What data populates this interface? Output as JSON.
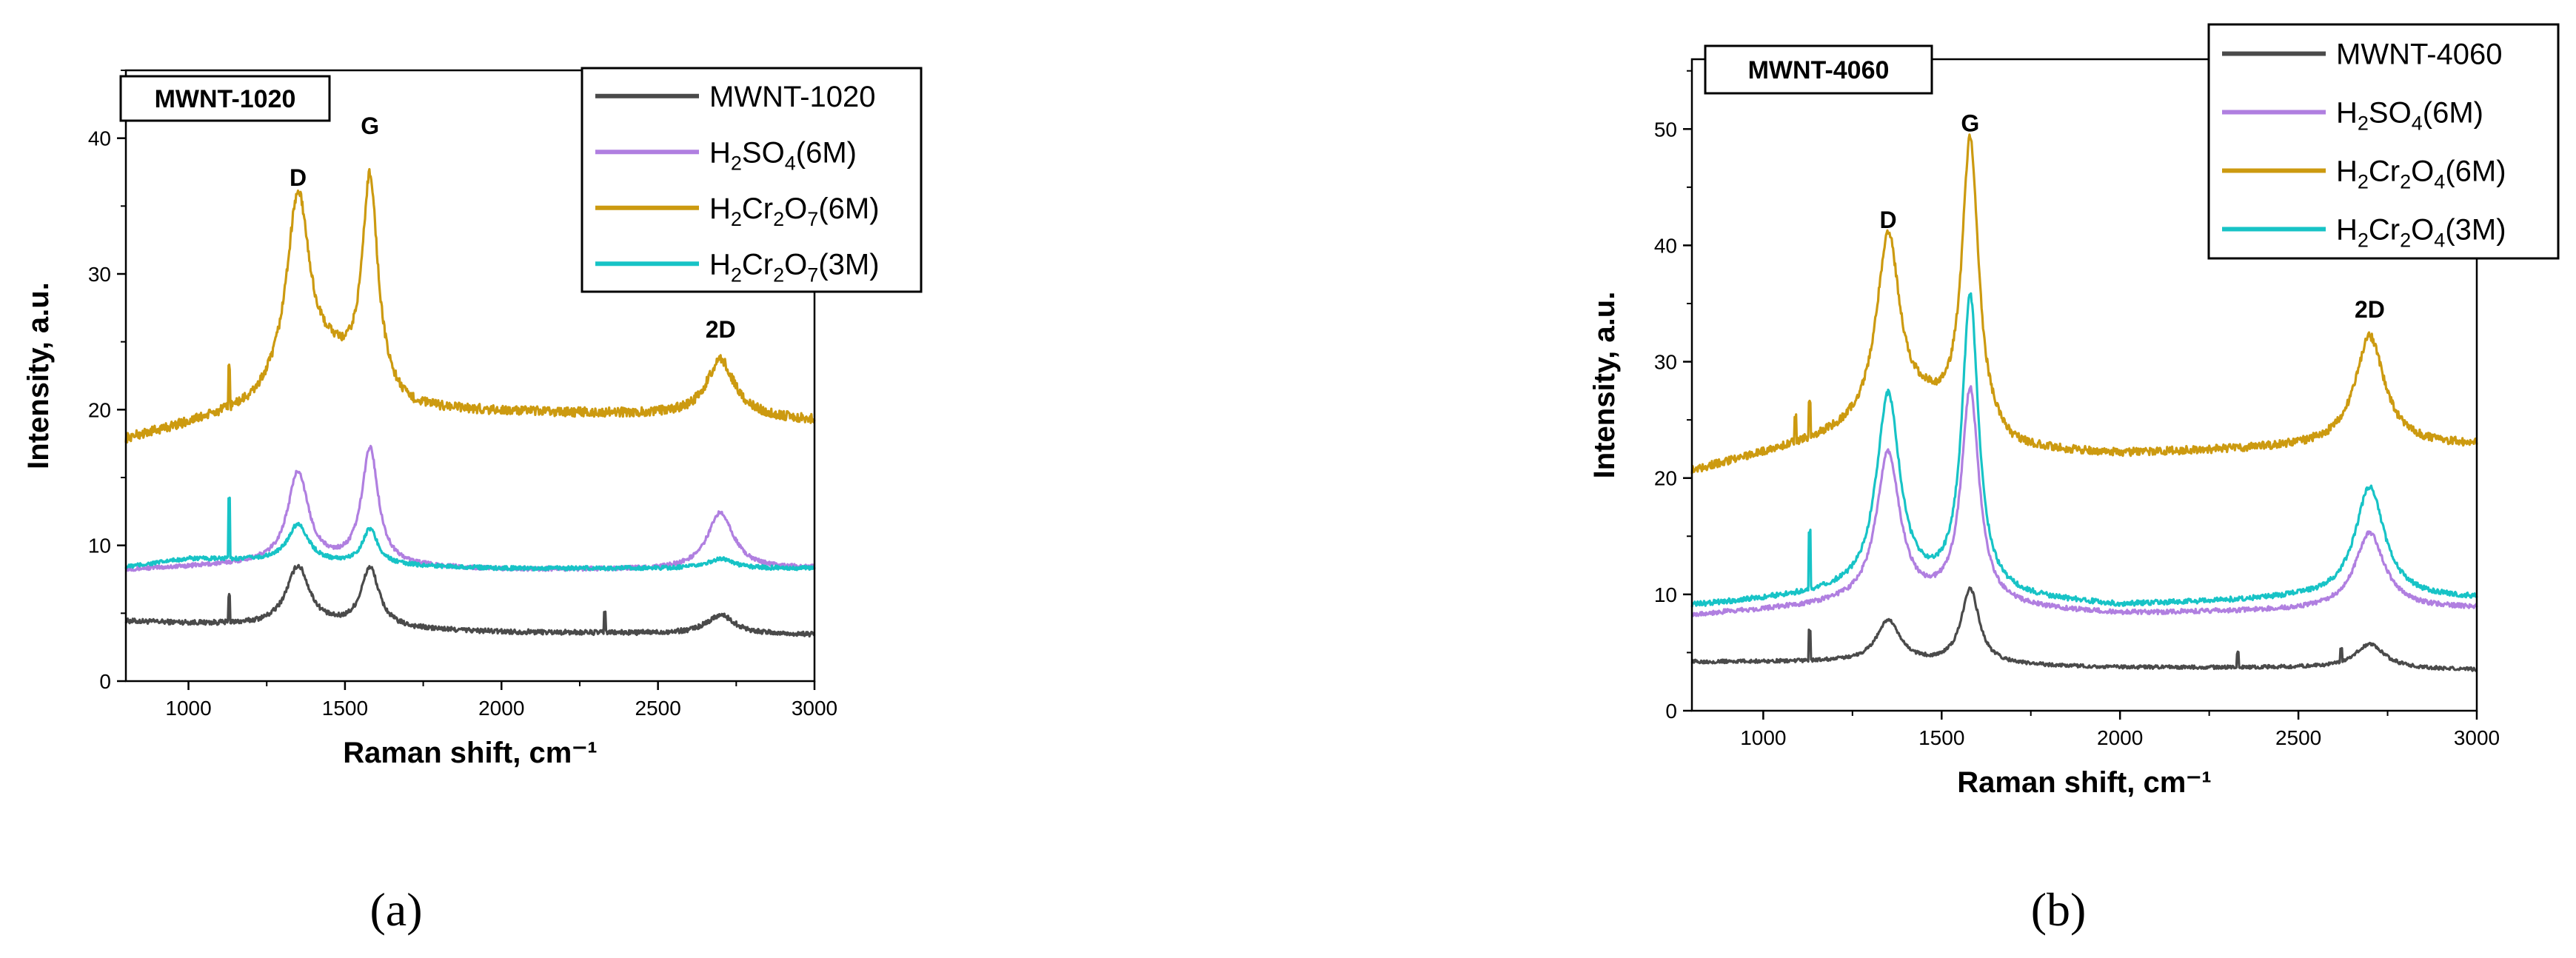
{
  "chart_data": [
    {
      "type": "line",
      "id": "a",
      "caption": "(a)",
      "sample_label": "MWNT-1020",
      "xlabel": "Raman shift, cm⁻¹",
      "ylabel": "Intensity, a.u.",
      "xlim": [
        800,
        3000
      ],
      "ylim": [
        0,
        45
      ],
      "xticks": [
        1000,
        1500,
        2000,
        2500,
        3000
      ],
      "yticks": [
        0,
        10,
        20,
        30,
        40
      ],
      "legend_position": "top-right",
      "peaks": [
        {
          "label": "D",
          "x": 1350,
          "y": 36.5
        },
        {
          "label": "G",
          "x": 1580,
          "y": 40.3
        },
        {
          "label": "2D",
          "x": 2700,
          "y": 25.3
        }
      ],
      "series": [
        {
          "name": "MWNT-1020",
          "legend": {
            "base": "MWNT-1020",
            "parts": [
              [
                "MWNT-1020",
                ""
              ]
            ]
          },
          "color": "#4a4a4a",
          "baseline": [
            [
              800,
              4.4
            ],
            [
              1200,
              4.1
            ],
            [
              1500,
              3.9
            ],
            [
              2000,
              3.6
            ],
            [
              2500,
              3.5
            ],
            [
              3000,
              3.4
            ]
          ],
          "peaks": [
            [
              1350,
              4.4,
              45
            ],
            [
              1580,
              4.4,
              35
            ],
            [
              2700,
              1.4,
              55
            ]
          ],
          "spikes": [
            [
              1130,
              2.0
            ],
            [
              2330,
              1.5
            ]
          ],
          "noise": 0.18
        },
        {
          "name": "H2SO4(6M)",
          "legend": {
            "base": "H2SO4(6M)",
            "parts": [
              [
                "H",
                ""
              ],
              [
                "2",
                "sub"
              ],
              [
                "SO",
                ""
              ],
              [
                "4",
                "sub"
              ],
              [
                "(6M)",
                ""
              ]
            ]
          },
          "color": "#b07fe0",
          "baseline": [
            [
              800,
              8.2
            ],
            [
              1200,
              8.6
            ],
            [
              1500,
              8.5
            ],
            [
              2000,
              8.2
            ],
            [
              2500,
              8.2
            ],
            [
              3000,
              8.3
            ]
          ],
          "peaks": [
            [
              1350,
              6.8,
              40
            ],
            [
              1580,
              8.6,
              32
            ],
            [
              2700,
              4.2,
              50
            ]
          ],
          "spikes": [],
          "noise": 0.15
        },
        {
          "name": "H2Cr2O7(6M)",
          "legend": {
            "base": "H2Cr2O7(6M)",
            "parts": [
              [
                "H",
                ""
              ],
              [
                "2",
                "sub"
              ],
              [
                "Cr",
                ""
              ],
              [
                "2",
                "sub"
              ],
              [
                "O",
                ""
              ],
              [
                "7",
                "sub"
              ],
              [
                "(6M)",
                ""
              ]
            ]
          },
          "color": "#cc9a10",
          "baseline": [
            [
              800,
              17.8
            ],
            [
              1200,
              20.0
            ],
            [
              1450,
              23.0
            ],
            [
              1700,
              20.0
            ],
            [
              2000,
              19.8
            ],
            [
              2500,
              19.6
            ],
            [
              3000,
              19.2
            ]
          ],
          "peaks": [
            [
              1350,
              14.0,
              45
            ],
            [
              1580,
              15.5,
              30
            ],
            [
              2700,
              4.2,
              55
            ]
          ],
          "spikes": [
            [
              1130,
              3.0
            ]
          ],
          "noise": 0.35
        },
        {
          "name": "H2Cr2O7(3M)",
          "legend": {
            "base": "H2Cr2O7(3M)",
            "parts": [
              [
                "H",
                ""
              ],
              [
                "2",
                "sub"
              ],
              [
                "Cr",
                ""
              ],
              [
                "2",
                "sub"
              ],
              [
                "O",
                ""
              ],
              [
                "7",
                "sub"
              ],
              [
                "(3M)",
                ""
              ]
            ]
          },
          "color": "#17c3c6",
          "baseline": [
            [
              800,
              8.4
            ],
            [
              1000,
              9.0
            ],
            [
              1200,
              8.9
            ],
            [
              1500,
              8.6
            ],
            [
              2000,
              8.3
            ],
            [
              2500,
              8.3
            ],
            [
              3000,
              8.3
            ]
          ],
          "peaks": [
            [
              1350,
              2.8,
              40
            ],
            [
              1580,
              2.6,
              30
            ],
            [
              2700,
              0.7,
              50
            ]
          ],
          "spikes": [
            [
              1130,
              4.5
            ]
          ],
          "noise": 0.15
        }
      ]
    },
    {
      "type": "line",
      "id": "b",
      "caption": "(b)",
      "sample_label": "MWNT-4060",
      "xlabel": "Raman shift, cm⁻¹",
      "ylabel": "Intensity, a.u.",
      "xlim": [
        800,
        3000
      ],
      "ylim": [
        0,
        56
      ],
      "xticks": [
        1000,
        1500,
        2000,
        2500,
        3000
      ],
      "yticks": [
        0,
        10,
        20,
        30,
        40,
        50
      ],
      "legend_position": "top-right",
      "peaks": [
        {
          "label": "D",
          "x": 1350,
          "y": 41.5
        },
        {
          "label": "G",
          "x": 1580,
          "y": 49.8
        },
        {
          "label": "2D",
          "x": 2700,
          "y": 33.8
        }
      ],
      "series": [
        {
          "name": "MWNT-4060",
          "legend": {
            "base": "MWNT-4060",
            "parts": [
              [
                "MWNT-4060",
                ""
              ]
            ]
          },
          "color": "#4a4a4a",
          "baseline": [
            [
              800,
              4.2
            ],
            [
              1200,
              4.2
            ],
            [
              1500,
              4.0
            ],
            [
              2000,
              3.7
            ],
            [
              2500,
              3.7
            ],
            [
              3000,
              3.5
            ]
          ],
          "peaks": [
            [
              1350,
              3.6,
              40
            ],
            [
              1580,
              6.5,
              30
            ],
            [
              2700,
              2.1,
              50
            ]
          ],
          "spikes": [
            [
              1130,
              2.5
            ],
            [
              2330,
              1.2
            ],
            [
              2620,
              1.0
            ]
          ],
          "noise": 0.15
        },
        {
          "name": "H2SO4(6M)",
          "legend": {
            "base": "H2SO4(6M)",
            "parts": [
              [
                "H",
                ""
              ],
              [
                "2",
                "sub"
              ],
              [
                "SO",
                ""
              ],
              [
                "4",
                "sub"
              ],
              [
                "(6M)",
                ""
              ]
            ]
          },
          "color": "#b07fe0",
          "baseline": [
            [
              800,
              8.2
            ],
            [
              1200,
              9.0
            ],
            [
              1500,
              9.0
            ],
            [
              2000,
              8.3
            ],
            [
              2500,
              8.6
            ],
            [
              3000,
              8.8
            ]
          ],
          "peaks": [
            [
              1350,
              13.0,
              40
            ],
            [
              1580,
              18.5,
              30
            ],
            [
              2700,
              6.6,
              50
            ]
          ],
          "spikes": [],
          "noise": 0.2
        },
        {
          "name": "H2Cr2O4(6M)",
          "legend": {
            "base": "H2Cr2O4(6M)",
            "parts": [
              [
                "H",
                ""
              ],
              [
                "2",
                "sub"
              ],
              [
                "Cr",
                ""
              ],
              [
                "2",
                "sub"
              ],
              [
                "O",
                ""
              ],
              [
                "4",
                "sub"
              ],
              [
                "(6M)",
                ""
              ]
            ]
          },
          "color": "#cc9a10",
          "baseline": [
            [
              800,
              20.6
            ],
            [
              1200,
              23.5
            ],
            [
              1450,
              25.5
            ],
            [
              1700,
              22.3
            ],
            [
              2000,
              22.0
            ],
            [
              2500,
              22.6
            ],
            [
              3000,
              22.8
            ]
          ],
          "peaks": [
            [
              1350,
              16.0,
              40
            ],
            [
              1580,
              25.0,
              28
            ],
            [
              2700,
              9.5,
              50
            ]
          ],
          "spikes": [
            [
              1130,
              3.0
            ],
            [
              1090,
              2.0
            ]
          ],
          "noise": 0.35
        },
        {
          "name": "H2Cr2O4(3M)",
          "legend": {
            "base": "H2Cr2O4(3M)",
            "parts": [
              [
                "H",
                ""
              ],
              [
                "2",
                "sub"
              ],
              [
                "Cr",
                ""
              ],
              [
                "2",
                "sub"
              ],
              [
                "O",
                ""
              ],
              [
                "4",
                "sub"
              ],
              [
                "(3M)",
                ""
              ]
            ]
          },
          "color": "#17c3c6",
          "baseline": [
            [
              800,
              9.0
            ],
            [
              1200,
              10.0
            ],
            [
              1500,
              10.0
            ],
            [
              2000,
              9.0
            ],
            [
              2500,
              9.6
            ],
            [
              3000,
              9.6
            ]
          ],
          "peaks": [
            [
              1350,
              17.0,
              40
            ],
            [
              1580,
              25.5,
              28
            ],
            [
              2700,
              9.6,
              50
            ]
          ],
          "spikes": [
            [
              1130,
              5.0
            ]
          ],
          "noise": 0.22
        }
      ]
    }
  ]
}
